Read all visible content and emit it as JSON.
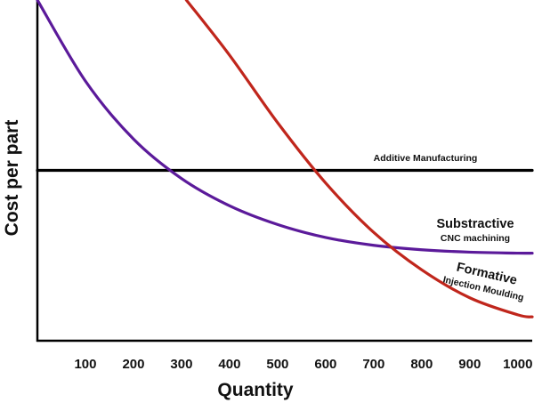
{
  "chart_data": {
    "type": "line",
    "xlabel": "Quantity",
    "ylabel": "Cost per part",
    "x_ticks": [
      "100",
      "200",
      "300",
      "400",
      "500",
      "600",
      "700",
      "800",
      "900",
      "1000"
    ],
    "xlim": [
      0,
      1030
    ],
    "ylim": [
      0,
      1
    ],
    "grid": false,
    "legend": "none",
    "series": [
      {
        "name": "Additive Manufacturing",
        "color": "#000000",
        "x": [
          0,
          1030
        ],
        "y": [
          0.5,
          0.5
        ]
      },
      {
        "name": "Substractive",
        "subtitle": "CNC machining",
        "color": "#5b1a9a",
        "x": [
          0,
          100,
          200,
          300,
          400,
          500,
          600,
          700,
          800,
          900,
          1000,
          1030
        ],
        "y": [
          1.0,
          0.762,
          0.592,
          0.476,
          0.396,
          0.341,
          0.303,
          0.28,
          0.267,
          0.26,
          0.257,
          0.257
        ]
      },
      {
        "name": "Formative",
        "subtitle": "Injection Moulding",
        "color": "#c0261c",
        "x": [
          310,
          400,
          500,
          600,
          700,
          800,
          900,
          1000,
          1030
        ],
        "y": [
          1.0,
          0.838,
          0.64,
          0.463,
          0.318,
          0.208,
          0.126,
          0.076,
          0.07
        ]
      }
    ]
  }
}
